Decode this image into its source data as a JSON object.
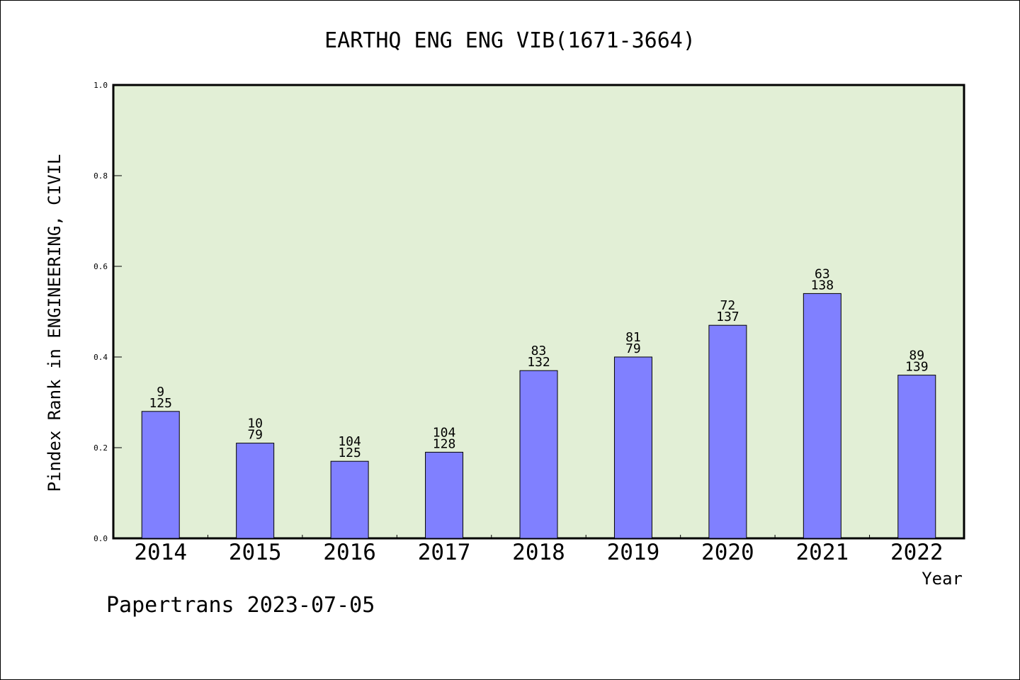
{
  "chart_data": {
    "type": "bar",
    "title": "EARTHQ ENG ENG VIB(1671-3664)",
    "xlabel": "Year",
    "ylabel": "Pindex Rank in ENGINEERING, CIVIL",
    "categories": [
      "2014",
      "2015",
      "2016",
      "2017",
      "2018",
      "2019",
      "2020",
      "2021",
      "2022"
    ],
    "values": [
      0.28,
      0.21,
      0.17,
      0.19,
      0.37,
      0.4,
      0.47,
      0.54,
      0.36
    ],
    "annotations_top": [
      "9",
      "10",
      "104",
      "104",
      "83",
      "81",
      "72",
      "63",
      "89"
    ],
    "annotations_bottom": [
      "125",
      "79",
      "125",
      "128",
      "132",
      "79",
      "137",
      "138",
      "139"
    ],
    "ylim": [
      0.0,
      1.0
    ],
    "yticks": [
      "0.0",
      "0.2",
      "0.4",
      "0.6",
      "0.8",
      "1.0"
    ],
    "grid": false,
    "colors": {
      "plot_background": "#e2efd6",
      "bar_fill": "#8080ff",
      "bar_stroke": "#000000"
    }
  },
  "footer": {
    "text": "Papertrans 2023-07-05"
  }
}
